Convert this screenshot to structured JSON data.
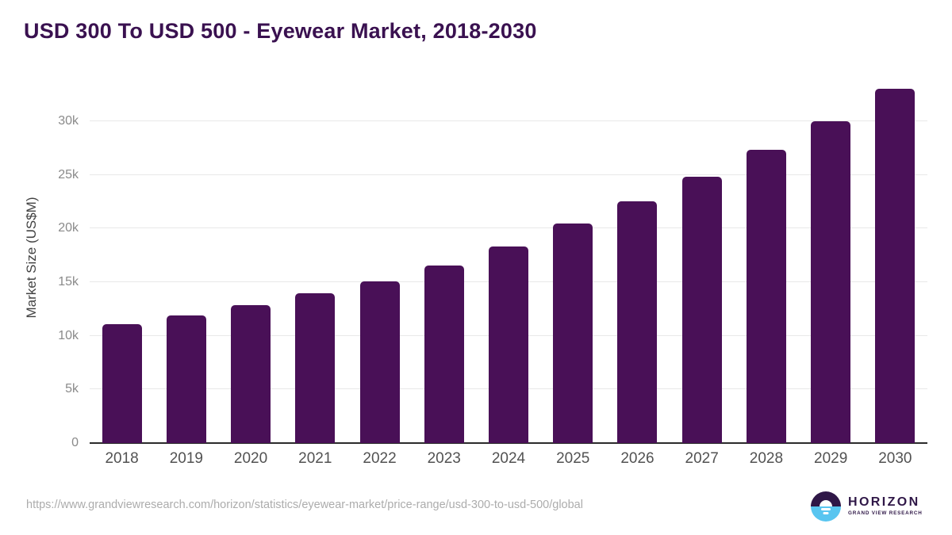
{
  "title": "USD 300 To USD 500 - Eyewear Market, 2018-2030",
  "chart_data": {
    "type": "bar",
    "title": "USD 300 To USD 500 - Eyewear Market, 2018-2030",
    "categories": [
      "2018",
      "2019",
      "2020",
      "2021",
      "2022",
      "2023",
      "2024",
      "2025",
      "2026",
      "2027",
      "2028",
      "2029",
      "2030"
    ],
    "values": [
      11050,
      11900,
      12850,
      13950,
      15100,
      16550,
      18300,
      20500,
      22550,
      24850,
      27300,
      30000,
      33000
    ],
    "xlabel": "",
    "ylabel": "Market Size (US$M)",
    "ylim": [
      0,
      34500
    ],
    "yticks": [
      {
        "value": 0,
        "label": "0"
      },
      {
        "value": 5000,
        "label": "5k"
      },
      {
        "value": 10000,
        "label": "10k"
      },
      {
        "value": 15000,
        "label": "15k"
      },
      {
        "value": 20000,
        "label": "20k"
      },
      {
        "value": 25000,
        "label": "25k"
      },
      {
        "value": 30000,
        "label": "30k"
      }
    ],
    "grid": true,
    "legend": false,
    "bar_color": "#491057",
    "title_color": "#3A1150",
    "gridline_color": "#E8E8E8",
    "axis_line_color": "#2B2B2B"
  },
  "footer": {
    "source_url": "https://www.grandviewresearch.com/horizon/statistics/eyewear-market/price-range/usd-300-to-usd-500/global",
    "logo": {
      "title": "HORIZON",
      "subtitle": "GRAND VIEW RESEARCH",
      "purple": "#2F1747",
      "blue": "#58C5F0"
    }
  }
}
